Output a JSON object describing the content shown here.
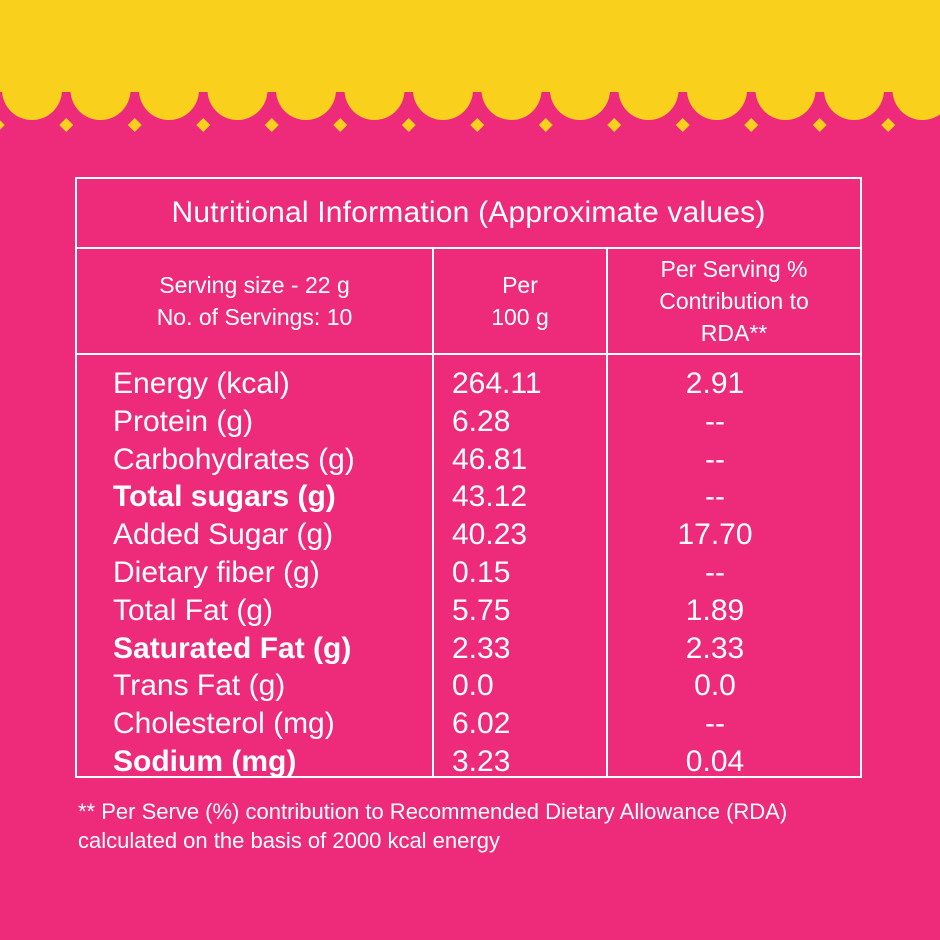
{
  "colors": {
    "background": "#ee2a7b",
    "banner": "#f9d11c",
    "text": "#ffffff"
  },
  "table": {
    "title": "Nutritional Information (Approximate values)",
    "header": {
      "serving_size": "Serving size - 22 g",
      "num_servings": "No. of Servings: 10",
      "per100_line1": "Per",
      "per100_line2": "100 g",
      "rda_line1": "Per Serving %",
      "rda_line2": "Contribution to",
      "rda_line3": "RDA**"
    },
    "rows": [
      {
        "name": "Energy (kcal)",
        "per100g": "264.11",
        "rda": "2.91",
        "bold": false
      },
      {
        "name": "Protein (g)",
        "per100g": "6.28",
        "rda": "--",
        "bold": false
      },
      {
        "name": "Carbohydrates (g)",
        "per100g": "46.81",
        "rda": "--",
        "bold": false
      },
      {
        "name": "Total sugars (g)",
        "per100g": "43.12",
        "rda": "--",
        "bold": true
      },
      {
        "name": "Added Sugar (g)",
        "per100g": "40.23",
        "rda": "17.70",
        "bold": false
      },
      {
        "name": "Dietary fiber (g)",
        "per100g": "0.15",
        "rda": "--",
        "bold": false
      },
      {
        "name": "Total Fat (g)",
        "per100g": "5.75",
        "rda": "1.89",
        "bold": false
      },
      {
        "name": "Saturated Fat (g)",
        "per100g": "2.33",
        "rda": "2.33",
        "bold": true
      },
      {
        "name": "Trans Fat (g)",
        "per100g": "0.0",
        "rda": "0.0",
        "bold": false
      },
      {
        "name": "Cholesterol (mg)",
        "per100g": "6.02",
        "rda": "--",
        "bold": false
      },
      {
        "name": "Sodium (mg)",
        "per100g": "3.23",
        "rda": "0.04",
        "bold": true
      }
    ]
  },
  "footnote": {
    "line1": "** Per Serve (%) contribution to Recommended Dietary Allowance (RDA)",
    "line2": "calculated on the basis of 2000 kcal energy"
  }
}
